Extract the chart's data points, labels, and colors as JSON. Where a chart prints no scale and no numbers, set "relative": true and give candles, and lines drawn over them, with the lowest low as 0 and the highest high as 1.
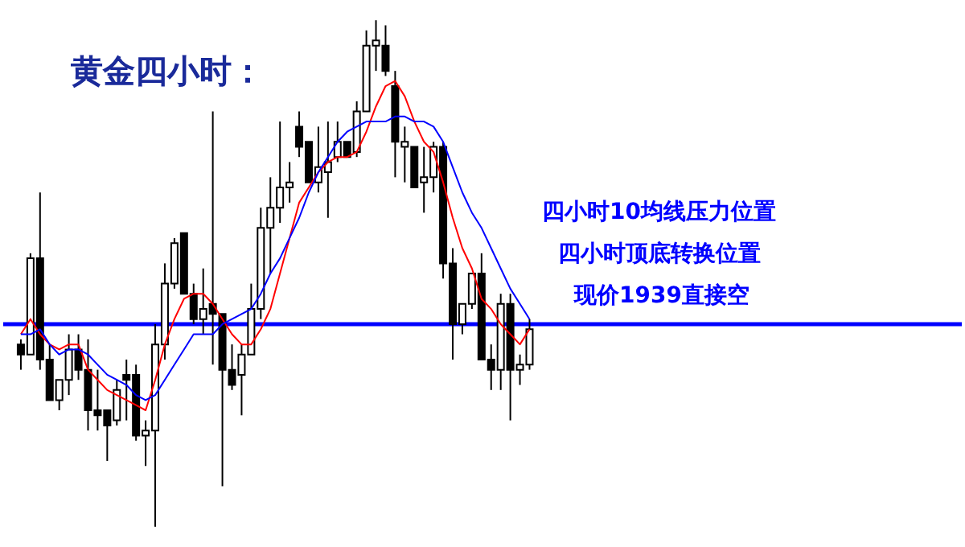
{
  "chart_data": {
    "type": "candlestick",
    "relative": true,
    "title": "黄金四小时：",
    "categories": [
      null,
      null,
      null,
      null,
      null,
      null,
      null,
      null,
      null,
      null,
      null,
      null,
      null,
      null,
      null,
      null,
      null,
      null,
      null,
      null,
      null,
      null,
      null,
      null,
      null,
      null,
      null,
      null,
      null,
      null,
      null,
      null,
      null,
      null,
      null,
      null,
      null,
      null,
      null,
      null,
      null,
      null,
      null,
      null,
      null,
      null,
      null,
      null,
      null,
      null,
      null,
      null,
      null,
      null
    ],
    "ohlc": [
      [
        0.36,
        0.37,
        0.31,
        0.34
      ],
      [
        0.34,
        0.54,
        0.34,
        0.53
      ],
      [
        0.53,
        0.66,
        0.31,
        0.33
      ],
      [
        0.33,
        0.36,
        0.25,
        0.25
      ],
      [
        0.25,
        0.29,
        0.23,
        0.29
      ],
      [
        0.29,
        0.38,
        0.26,
        0.35
      ],
      [
        0.35,
        0.38,
        0.29,
        0.31
      ],
      [
        0.31,
        0.37,
        0.19,
        0.23
      ],
      [
        0.23,
        0.31,
        0.19,
        0.22
      ],
      [
        0.23,
        0.23,
        0.13,
        0.2
      ],
      [
        0.21,
        0.29,
        0.2,
        0.27
      ],
      [
        0.3,
        0.33,
        0.21,
        0.29
      ],
      [
        0.3,
        0.32,
        0.17,
        0.18
      ],
      [
        0.18,
        0.21,
        0.12,
        0.19
      ],
      [
        0.19,
        0.4,
        0,
        0.36
      ],
      [
        0.36,
        0.52,
        0.33,
        0.48
      ],
      [
        0.48,
        0.57,
        0.47,
        0.56
      ],
      [
        0.58,
        0.58,
        0.46,
        0.46
      ],
      [
        0.46,
        0.48,
        0.4,
        0.41
      ],
      [
        0.41,
        0.51,
        0.38,
        0.43
      ],
      [
        0.44,
        0.82,
        0.32,
        0.42
      ],
      [
        0.42,
        0.42,
        0.08,
        0.31
      ],
      [
        0.31,
        0.36,
        0.27,
        0.28
      ],
      [
        0.3,
        0.36,
        0.22,
        0.34
      ],
      [
        0.34,
        0.48,
        0.34,
        0.43
      ],
      [
        0.43,
        0.63,
        0.41,
        0.59
      ],
      [
        0.59,
        0.69,
        0.5,
        0.63
      ],
      [
        0.63,
        0.8,
        0.6,
        0.67
      ],
      [
        0.67,
        0.72,
        0.64,
        0.68
      ],
      [
        0.79,
        0.82,
        0.73,
        0.75
      ],
      [
        0.76,
        0.76,
        0.68,
        0.68
      ],
      [
        0.68,
        0.79,
        0.66,
        0.71
      ],
      [
        0.7,
        0.8,
        0.61,
        0.72
      ],
      [
        0.73,
        0.8,
        0.72,
        0.76
      ],
      [
        0.76,
        0.76,
        0.73,
        0.73
      ],
      [
        0.74,
        0.84,
        0.73,
        0.82
      ],
      [
        0.82,
        0.98,
        0.82,
        0.95
      ],
      [
        0.95,
        1,
        0.9,
        0.96
      ],
      [
        0.95,
        0.99,
        0.89,
        0.9
      ],
      [
        0.87,
        0.9,
        0.69,
        0.76
      ],
      [
        0.75,
        0.79,
        0.68,
        0.76
      ],
      [
        0.75,
        0.75,
        0.67,
        0.67
      ],
      [
        0.68,
        0.75,
        0.62,
        0.69
      ],
      [
        0.69,
        0.76,
        0.66,
        0.75
      ],
      [
        0.75,
        0.76,
        0.49,
        0.52
      ],
      [
        0.52,
        0.55,
        0.33,
        0.4
      ],
      [
        0.4,
        0.44,
        0.38,
        0.44
      ],
      [
        0.44,
        0.5,
        0.43,
        0.5
      ],
      [
        0.5,
        0.54,
        0.33,
        0.33
      ],
      [
        0.33,
        0.36,
        0.27,
        0.31
      ],
      [
        0.31,
        0.46,
        0.27,
        0.44
      ],
      [
        0.44,
        0.46,
        0.21,
        0.31
      ],
      [
        0.31,
        0.34,
        0.28,
        0.32
      ],
      [
        0.32,
        0.41,
        0.31,
        0.39
      ]
    ],
    "series": [
      {
        "type": "line",
        "color": "#ff0000",
        "values": [
          0.38,
          0.41,
          0.38,
          0.36,
          0.35,
          0.36,
          0.36,
          0.31,
          0.29,
          0.27,
          0.26,
          0.25,
          0.24,
          0.23,
          0.29,
          0.36,
          0.41,
          0.45,
          0.46,
          0.46,
          0.44,
          0.41,
          0.38,
          0.36,
          0.36,
          0.39,
          0.43,
          0.5,
          0.57,
          0.64,
          0.67,
          0.7,
          0.72,
          0.73,
          0.73,
          0.74,
          0.78,
          0.83,
          0.87,
          0.88,
          0.85,
          0.8,
          0.76,
          0.74,
          0.68,
          0.61,
          0.55,
          0.51,
          0.45,
          0.43,
          0.4,
          0.38,
          0.36,
          0.39
        ]
      },
      {
        "type": "line",
        "color": "#0000ff",
        "values": [
          0.38,
          0.38,
          0.39,
          0.36,
          0.34,
          0.35,
          0.35,
          0.34,
          0.32,
          0.3,
          0.29,
          0.28,
          0.26,
          0.25,
          0.26,
          0.29,
          0.32,
          0.35,
          0.38,
          0.38,
          0.38,
          0.4,
          0.41,
          0.42,
          0.43,
          0.46,
          0.5,
          0.53,
          0.57,
          0.61,
          0.66,
          0.7,
          0.73,
          0.76,
          0.78,
          0.79,
          0.8,
          0.8,
          0.8,
          0.81,
          0.81,
          0.8,
          0.8,
          0.79,
          0.76,
          0.71,
          0.66,
          0.62,
          0.59,
          0.55,
          0.51,
          0.47,
          0.44,
          0.41
        ]
      }
    ],
    "ref_lines": [
      {
        "axis": "y",
        "value": 0.4,
        "color": "#0000ff"
      }
    ],
    "annotations": [
      "四小时10均线压力位置",
      "四小时顶底转换位置",
      "现价1939直接空"
    ]
  }
}
